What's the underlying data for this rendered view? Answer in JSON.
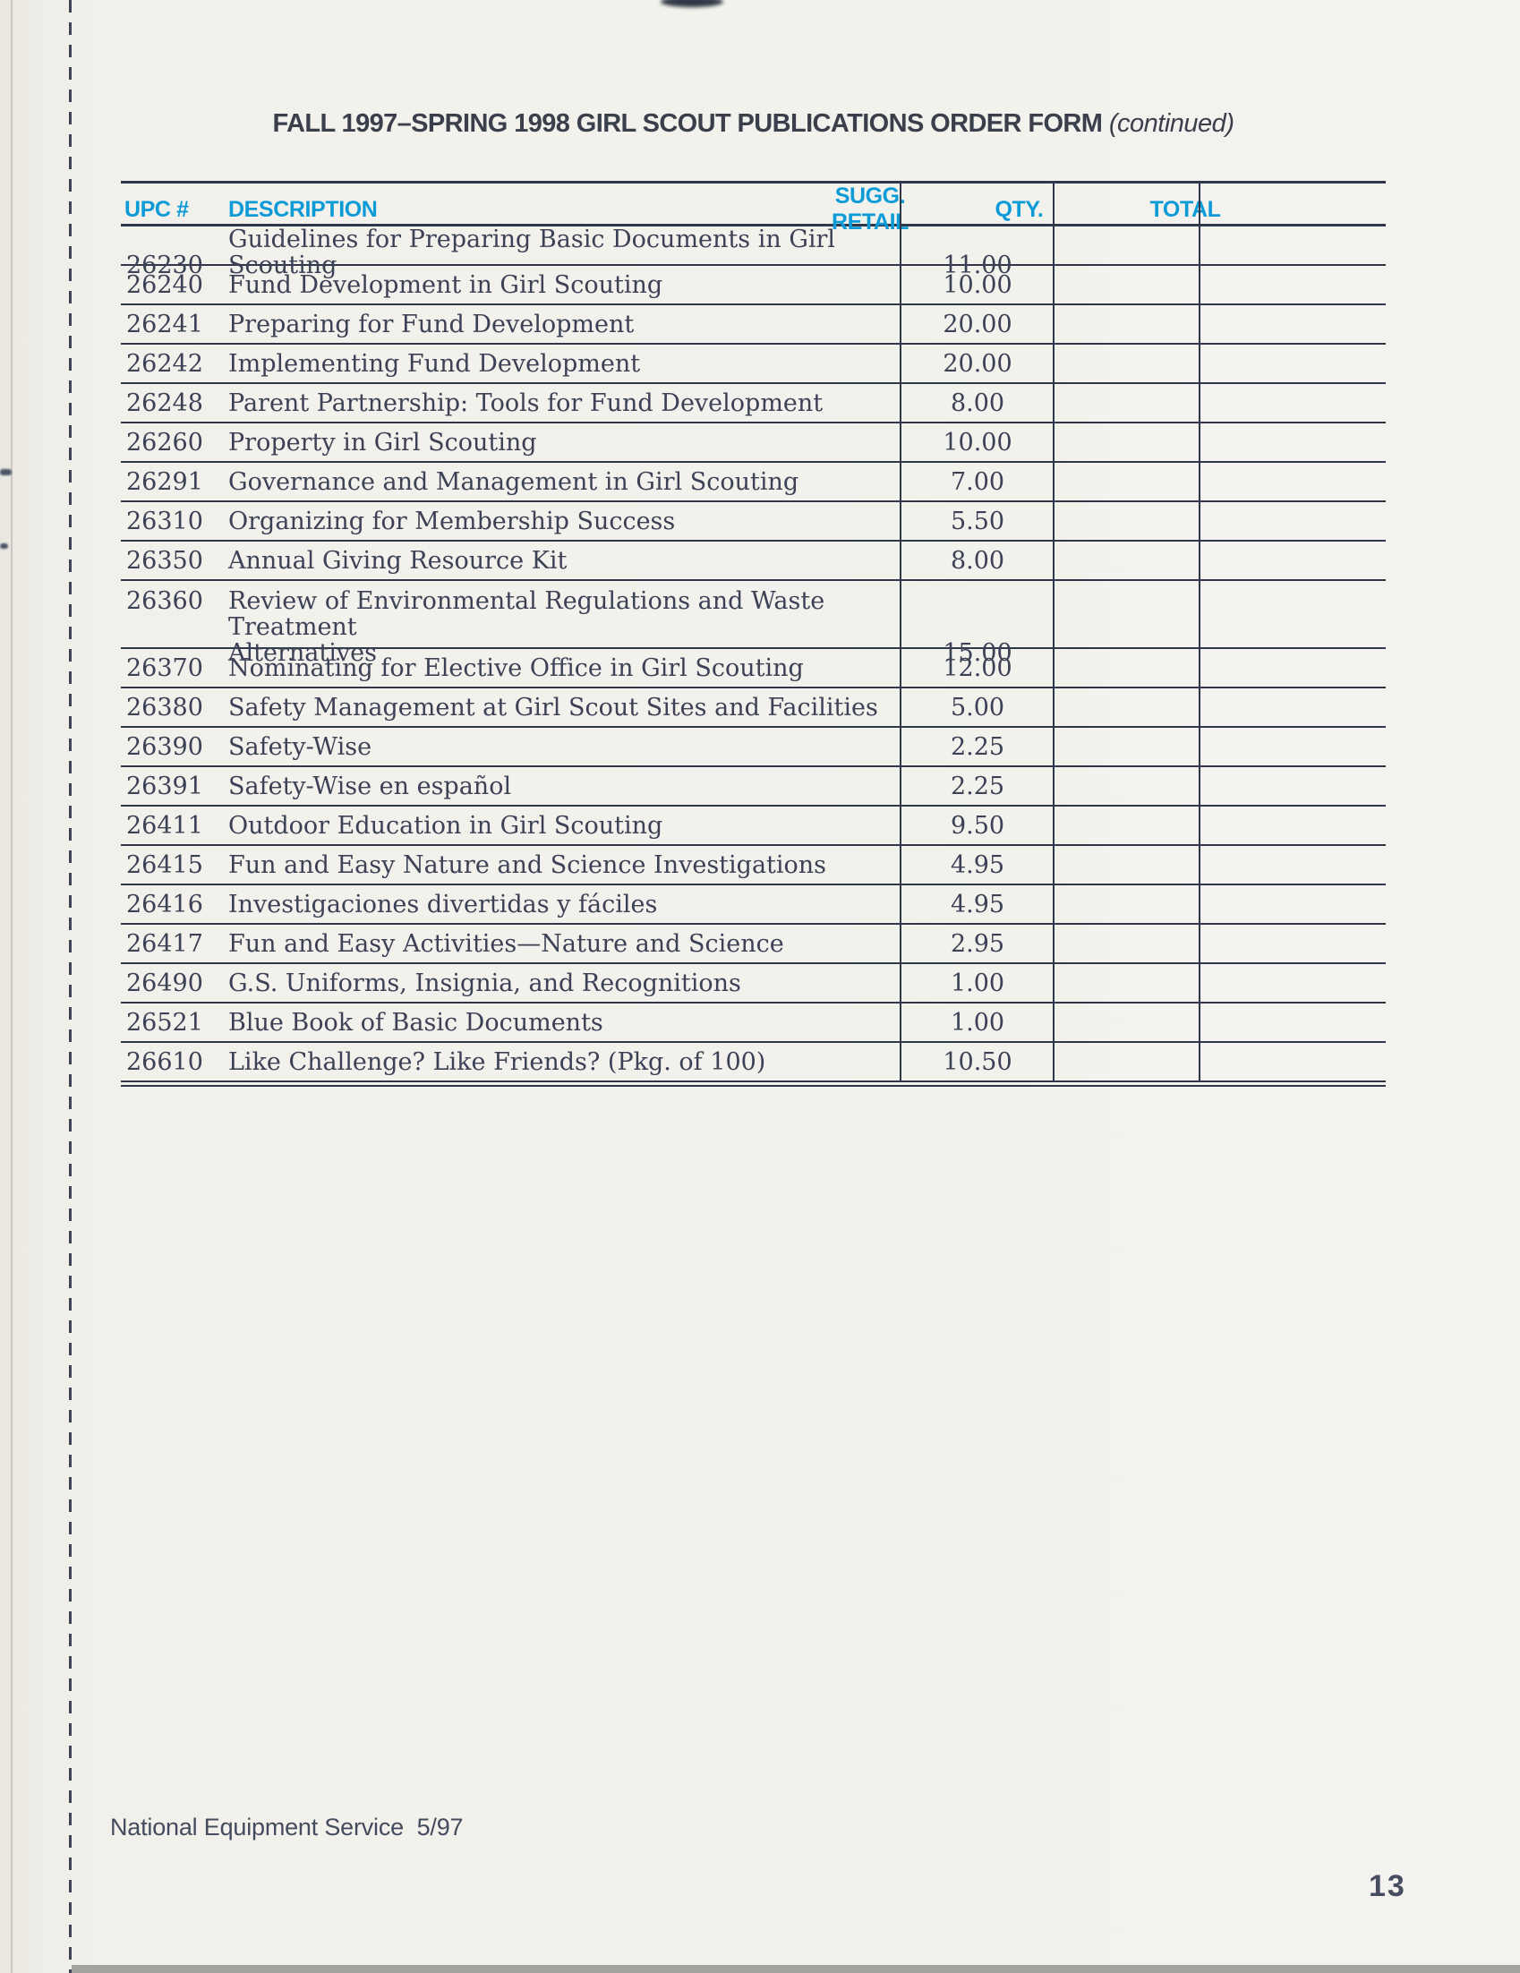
{
  "page": {
    "title": "FALL 1997–SPRING 1998 GIRL SCOUT PUBLICATIONS ORDER FORM",
    "title_suffix": " (continued)",
    "footer_left": "National Equipment Service  5/97",
    "page_number": "13"
  },
  "table": {
    "headers": {
      "upc": "UPC #",
      "description": "DESCRIPTION",
      "retail": "SUGG. RETAIL",
      "qty": "QTY.",
      "total": "TOTAL"
    },
    "rows": [
      {
        "upc": "26230",
        "description": "Guidelines for Preparing Basic Documents in Girl Scouting",
        "retail": "11.00",
        "qty": "",
        "total": ""
      },
      {
        "upc": "26240",
        "description": "Fund Development in Girl Scouting",
        "retail": "10.00",
        "qty": "",
        "total": ""
      },
      {
        "upc": "26241",
        "description": "Preparing for Fund Development",
        "retail": "20.00",
        "qty": "",
        "total": ""
      },
      {
        "upc": "26242",
        "description": "Implementing Fund Development",
        "retail": "20.00",
        "qty": "",
        "total": ""
      },
      {
        "upc": "26248",
        "description": "Parent Partnership: Tools for Fund Development",
        "retail": "8.00",
        "qty": "",
        "total": ""
      },
      {
        "upc": "26260",
        "description": "Property in Girl Scouting",
        "retail": "10.00",
        "qty": "",
        "total": ""
      },
      {
        "upc": "26291",
        "description": "Governance and Management in Girl Scouting",
        "retail": "7.00",
        "qty": "",
        "total": ""
      },
      {
        "upc": "26310",
        "description": "Organizing for Membership Success",
        "retail": "5.50",
        "qty": "",
        "total": ""
      },
      {
        "upc": "26350",
        "description": "Annual Giving Resource Kit",
        "retail": "8.00",
        "qty": "",
        "total": ""
      },
      {
        "upc": "26360",
        "description": "Review of Environmental Regulations and Waste Treatment\nAlternatives",
        "retail": "15.00",
        "qty": "",
        "total": "",
        "tall": true
      },
      {
        "upc": "26370",
        "description": "Nominating for Elective Office in Girl Scouting",
        "retail": "12.00",
        "qty": "",
        "total": ""
      },
      {
        "upc": "26380",
        "description": "Safety Management at Girl Scout Sites and Facilities",
        "retail": "5.00",
        "qty": "",
        "total": ""
      },
      {
        "upc": "26390",
        "description": "Safety-Wise",
        "retail": "2.25",
        "qty": "",
        "total": ""
      },
      {
        "upc": "26391",
        "description": "Safety-Wise en español",
        "retail": "2.25",
        "qty": "",
        "total": ""
      },
      {
        "upc": "26411",
        "description": "Outdoor Education in Girl Scouting",
        "retail": "9.50",
        "qty": "",
        "total": ""
      },
      {
        "upc": "26415",
        "description": "Fun and Easy Nature and Science Investigations",
        "retail": "4.95",
        "qty": "",
        "total": ""
      },
      {
        "upc": "26416",
        "description": "Investigaciones divertidas y fáciles",
        "retail": "4.95",
        "qty": "",
        "total": ""
      },
      {
        "upc": "26417",
        "description": "Fun and Easy Activities—Nature and Science",
        "retail": "2.95",
        "qty": "",
        "total": ""
      },
      {
        "upc": "26490",
        "description": "G.S. Uniforms, Insignia, and Recognitions",
        "retail": "1.00",
        "qty": "",
        "total": ""
      },
      {
        "upc": "26521",
        "description": "Blue Book of Basic Documents",
        "retail": "1.00",
        "qty": "",
        "total": ""
      },
      {
        "upc": "26610",
        "description": "Like Challenge? Like Friends?  (Pkg. of 100)",
        "retail": "10.50",
        "qty": "",
        "total": ""
      }
    ]
  },
  "colors": {
    "accent": "#0d9bd8",
    "ink": "#3c4156",
    "line": "#30374a",
    "paper": "#f2f1ec"
  }
}
